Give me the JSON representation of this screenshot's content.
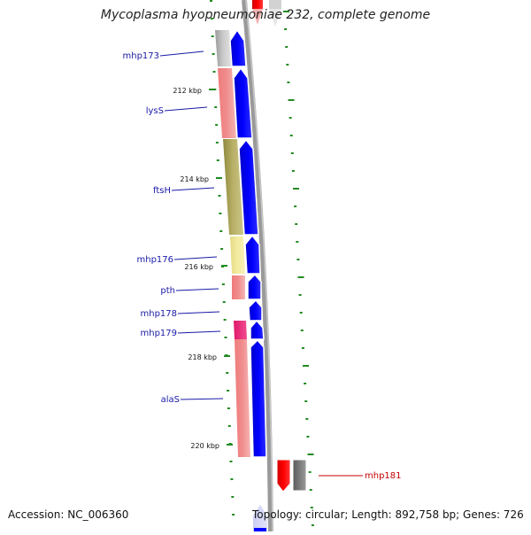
{
  "map": {
    "title": "Mycoplasma hyopneumoniae 232, complete genome",
    "accession": "Accession: NC_006360",
    "summary": "Topology: circular; Length: 892,758 bp; Genes: 726",
    "ticks": [
      "212 kbp",
      "214 kbp",
      "216 kbp",
      "218 kbp",
      "220 kbp"
    ],
    "genes": [
      "mhp173",
      "lysS",
      "ftsH",
      "mhp176",
      "pth",
      "mhp178",
      "mhp179",
      "alaS",
      "mhp181"
    ]
  },
  "colors": {
    "cds": "#0000ff",
    "backbone": "#8c8c8c",
    "tick": "#228b22",
    "label_blue": "#1a1aa8",
    "label_red": "#c40000"
  }
}
